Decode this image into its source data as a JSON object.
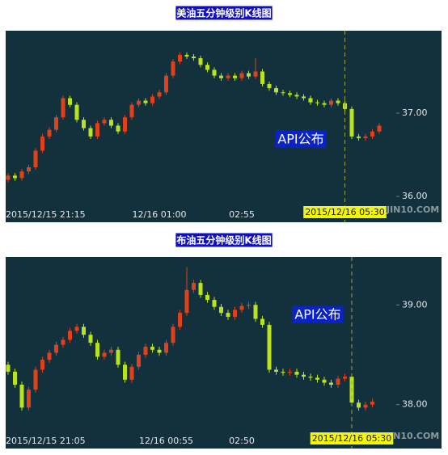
{
  "chart_data": [
    {
      "type": "candlestick",
      "title": "美油五分钟级别K线图",
      "annotation": "API公布",
      "watermark": "JIN10.COM",
      "up_color": "#e0401a",
      "down_color": "#b9e31c",
      "ylim": [
        35.69,
        37.99
      ],
      "yticks": [
        {
          "value": 36,
          "label": "36.00"
        },
        {
          "value": 37,
          "label": "37.00"
        }
      ],
      "categories": [
        "2015/12/15 21:15",
        null,
        null,
        null,
        null,
        null,
        null,
        null,
        null,
        null,
        null,
        null,
        null,
        null,
        null,
        null,
        null,
        null,
        null,
        null,
        null,
        null,
        "12/16 01:00",
        null,
        null,
        null,
        null,
        null,
        null,
        null,
        null,
        null,
        null,
        null,
        "02:55",
        null,
        null,
        null,
        null,
        null,
        null,
        null,
        null,
        null,
        null,
        null,
        null,
        null,
        null,
        "2015/12/16 05:30",
        null,
        null,
        null,
        null,
        null
      ],
      "candles": [
        [
          36.2,
          36.28,
          36.17,
          36.25
        ],
        [
          36.25,
          36.28,
          36.19,
          36.22
        ],
        [
          36.22,
          36.33,
          36.19,
          36.3
        ],
        [
          36.3,
          36.38,
          36.27,
          36.35
        ],
        [
          36.35,
          36.58,
          36.32,
          36.55
        ],
        [
          36.55,
          36.75,
          36.52,
          36.72
        ],
        [
          36.72,
          36.83,
          36.69,
          36.8
        ],
        [
          36.8,
          36.98,
          36.77,
          36.95
        ],
        [
          36.95,
          37.21,
          36.92,
          37.18
        ],
        [
          37.18,
          37.21,
          37.07,
          37.1
        ],
        [
          37.1,
          37.13,
          36.89,
          36.92
        ],
        [
          36.92,
          36.95,
          36.79,
          36.82
        ],
        [
          36.82,
          36.85,
          36.69,
          36.72
        ],
        [
          36.72,
          36.91,
          36.69,
          36.88
        ],
        [
          36.88,
          36.95,
          36.85,
          36.92
        ],
        [
          36.92,
          36.95,
          36.82,
          36.85
        ],
        [
          36.85,
          36.88,
          36.75,
          36.78
        ],
        [
          36.78,
          36.98,
          36.75,
          36.95
        ],
        [
          36.95,
          37.13,
          36.92,
          37.1
        ],
        [
          37.1,
          37.18,
          37.07,
          37.15
        ],
        [
          37.15,
          37.18,
          37.09,
          37.12
        ],
        [
          37.12,
          37.23,
          37.09,
          37.2
        ],
        [
          37.2,
          37.28,
          37.17,
          37.25
        ],
        [
          37.25,
          37.48,
          37.22,
          37.45
        ],
        [
          37.45,
          37.65,
          37.42,
          37.62
        ],
        [
          37.62,
          37.73,
          37.59,
          37.7
        ],
        [
          37.7,
          37.73,
          37.65,
          37.68
        ],
        [
          37.68,
          37.71,
          37.63,
          37.66
        ],
        [
          37.66,
          37.69,
          37.55,
          37.58
        ],
        [
          37.58,
          37.61,
          37.49,
          37.52
        ],
        [
          37.52,
          37.55,
          37.42,
          37.45
        ],
        [
          37.45,
          37.48,
          37.39,
          37.42
        ],
        [
          37.42,
          37.48,
          37.39,
          37.45
        ],
        [
          37.45,
          37.48,
          37.39,
          37.42
        ],
        [
          37.42,
          37.51,
          37.39,
          37.48
        ],
        [
          37.48,
          37.51,
          37.41,
          37.44
        ],
        [
          37.44,
          37.66,
          37.41,
          37.5
        ],
        [
          37.5,
          37.53,
          37.32,
          37.35
        ],
        [
          37.35,
          37.38,
          37.27,
          37.3
        ],
        [
          37.3,
          37.33,
          37.22,
          37.25
        ],
        [
          37.25,
          37.28,
          37.21,
          37.24
        ],
        [
          37.24,
          37.27,
          37.19,
          37.22
        ],
        [
          37.22,
          37.25,
          37.17,
          37.2
        ],
        [
          37.2,
          37.23,
          37.15,
          37.18
        ],
        [
          37.18,
          37.21,
          37.1,
          37.13
        ],
        [
          37.13,
          37.16,
          37.09,
          37.12
        ],
        [
          37.12,
          37.15,
          37.07,
          37.1
        ],
        [
          37.1,
          37.18,
          37.07,
          37.15
        ],
        [
          37.15,
          37.18,
          37.09,
          37.12
        ],
        [
          37.12,
          37.15,
          37.02,
          37.05
        ],
        [
          37.05,
          37.08,
          36.69,
          36.72
        ],
        [
          36.72,
          36.75,
          36.67,
          36.7
        ],
        [
          36.7,
          36.75,
          36.67,
          36.72
        ],
        [
          36.72,
          36.81,
          36.69,
          36.78
        ],
        [
          36.78,
          36.88,
          36.75,
          36.85
        ]
      ]
    },
    {
      "type": "candlestick",
      "title": "布油五分钟级别K线图",
      "annotation": "API公布",
      "watermark": "JIN10.COM",
      "up_color": "#e0401a",
      "down_color": "#b9e31c",
      "ylim": [
        37.56,
        39.48
      ],
      "yticks": [
        {
          "value": 38,
          "label": "38.00"
        },
        {
          "value": 39,
          "label": "39.00"
        }
      ],
      "categories": [
        "2015/12/15 21:05",
        null,
        null,
        null,
        null,
        null,
        null,
        null,
        null,
        null,
        null,
        null,
        null,
        null,
        null,
        null,
        null,
        null,
        null,
        null,
        null,
        null,
        null,
        "12/16 00:55",
        null,
        null,
        null,
        null,
        null,
        null,
        null,
        null,
        null,
        null,
        "02:50",
        null,
        null,
        null,
        null,
        null,
        null,
        null,
        null,
        null,
        null,
        null,
        null,
        null,
        null,
        null,
        "2015/12/16 05:30",
        null,
        null,
        null
      ],
      "candles": [
        [
          38.4,
          38.43,
          38.3,
          38.33
        ],
        [
          38.33,
          38.36,
          38.17,
          38.2
        ],
        [
          38.2,
          38.23,
          37.94,
          37.97
        ],
        [
          37.97,
          38.18,
          37.94,
          38.15
        ],
        [
          38.15,
          38.38,
          38.12,
          38.35
        ],
        [
          38.35,
          38.48,
          38.32,
          38.45
        ],
        [
          38.45,
          38.55,
          38.42,
          38.52
        ],
        [
          38.52,
          38.63,
          38.49,
          38.6
        ],
        [
          38.6,
          38.68,
          38.57,
          38.65
        ],
        [
          38.65,
          38.77,
          38.62,
          38.74
        ],
        [
          38.74,
          38.81,
          38.71,
          38.78
        ],
        [
          38.78,
          38.81,
          38.67,
          38.7
        ],
        [
          38.7,
          38.73,
          38.59,
          38.62
        ],
        [
          38.62,
          38.65,
          38.45,
          38.48
        ],
        [
          38.48,
          38.55,
          38.45,
          38.52
        ],
        [
          38.52,
          38.58,
          38.49,
          38.55
        ],
        [
          38.55,
          38.58,
          38.37,
          38.4
        ],
        [
          38.4,
          38.43,
          38.22,
          38.25
        ],
        [
          38.25,
          38.41,
          38.22,
          38.38
        ],
        [
          38.38,
          38.53,
          38.35,
          38.5
        ],
        [
          38.5,
          38.61,
          38.47,
          38.58
        ],
        [
          38.58,
          38.61,
          38.52,
          38.55
        ],
        [
          38.55,
          38.58,
          38.49,
          38.52
        ],
        [
          38.52,
          38.65,
          38.49,
          38.62
        ],
        [
          38.62,
          38.81,
          38.59,
          38.78
        ],
        [
          38.78,
          38.95,
          38.75,
          38.92
        ],
        [
          38.92,
          39.38,
          38.89,
          39.15
        ],
        [
          39.15,
          39.25,
          39.12,
          39.22
        ],
        [
          39.22,
          39.25,
          39.07,
          39.1
        ],
        [
          39.1,
          39.13,
          39.02,
          39.05
        ],
        [
          39.05,
          39.08,
          38.95,
          38.98
        ],
        [
          38.98,
          39.01,
          38.89,
          38.92
        ],
        [
          38.92,
          38.95,
          38.85,
          38.88
        ],
        [
          38.88,
          38.98,
          38.85,
          38.95
        ],
        [
          38.95,
          39.02,
          38.92,
          38.99
        ],
        [
          38.99,
          39.03,
          38.96,
          39.0
        ],
        [
          39.0,
          39.03,
          38.83,
          38.86
        ],
        [
          38.86,
          38.89,
          38.77,
          38.8
        ],
        [
          38.8,
          38.83,
          38.32,
          38.35
        ],
        [
          38.35,
          38.38,
          38.3,
          38.33
        ],
        [
          38.33,
          38.36,
          38.29,
          38.32
        ],
        [
          38.32,
          38.36,
          38.29,
          38.33
        ],
        [
          38.33,
          38.36,
          38.27,
          38.3
        ],
        [
          38.3,
          38.33,
          38.25,
          38.28
        ],
        [
          38.28,
          38.31,
          38.24,
          38.27
        ],
        [
          38.27,
          38.3,
          38.22,
          38.25
        ],
        [
          38.25,
          38.28,
          38.19,
          38.22
        ],
        [
          38.22,
          38.25,
          38.17,
          38.2
        ],
        [
          38.2,
          38.29,
          38.17,
          38.26
        ],
        [
          38.26,
          38.31,
          38.23,
          38.28
        ],
        [
          38.28,
          38.31,
          37.99,
          38.02
        ],
        [
          38.02,
          38.05,
          37.94,
          37.97
        ],
        [
          37.97,
          38.03,
          37.94,
          38.0
        ],
        [
          38.0,
          38.06,
          37.97,
          38.03
        ]
      ]
    }
  ]
}
